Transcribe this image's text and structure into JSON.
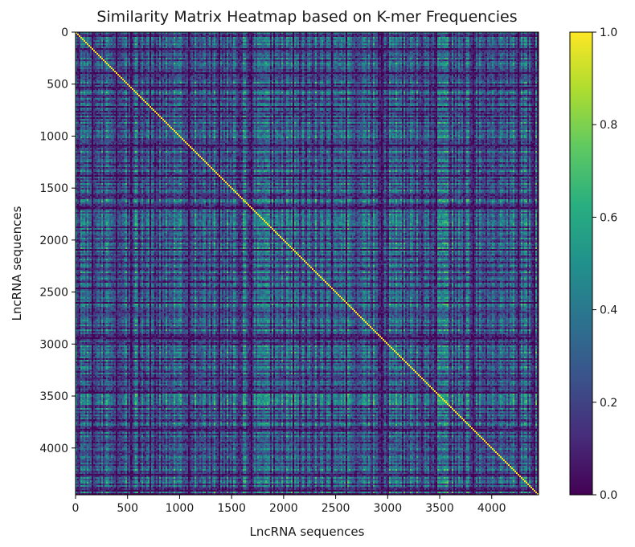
{
  "chart_data": {
    "type": "heatmap",
    "title": "Similarity Matrix Heatmap  based on K-mer Frequencies",
    "xlabel": "LncRNA sequences",
    "ylabel": "LncRNA sequences",
    "xlim": [
      0,
      4450
    ],
    "ylim": [
      4450,
      0
    ],
    "x_ticks": [
      0,
      500,
      1000,
      1500,
      2000,
      2500,
      3000,
      3500,
      4000
    ],
    "y_ticks": [
      0,
      500,
      1000,
      1500,
      2000,
      2500,
      3000,
      3500,
      4000
    ],
    "matrix_size": 4450,
    "colormap": "viridis",
    "colorbar": {
      "min": 0.0,
      "max": 1.0,
      "ticks": [
        0.0,
        0.2,
        0.4,
        0.6,
        0.8,
        1.0
      ],
      "tick_labels": [
        "0.0",
        "0.2",
        "0.4",
        "0.6",
        "0.8",
        "1.0"
      ]
    },
    "grid": false,
    "colors": {
      "viridis_0": "#440154",
      "viridis_25": "#3b528b",
      "viridis_50": "#21918c",
      "viridis_75": "#5ec962",
      "viridis_100": "#fde725",
      "frame": "#000000"
    }
  }
}
